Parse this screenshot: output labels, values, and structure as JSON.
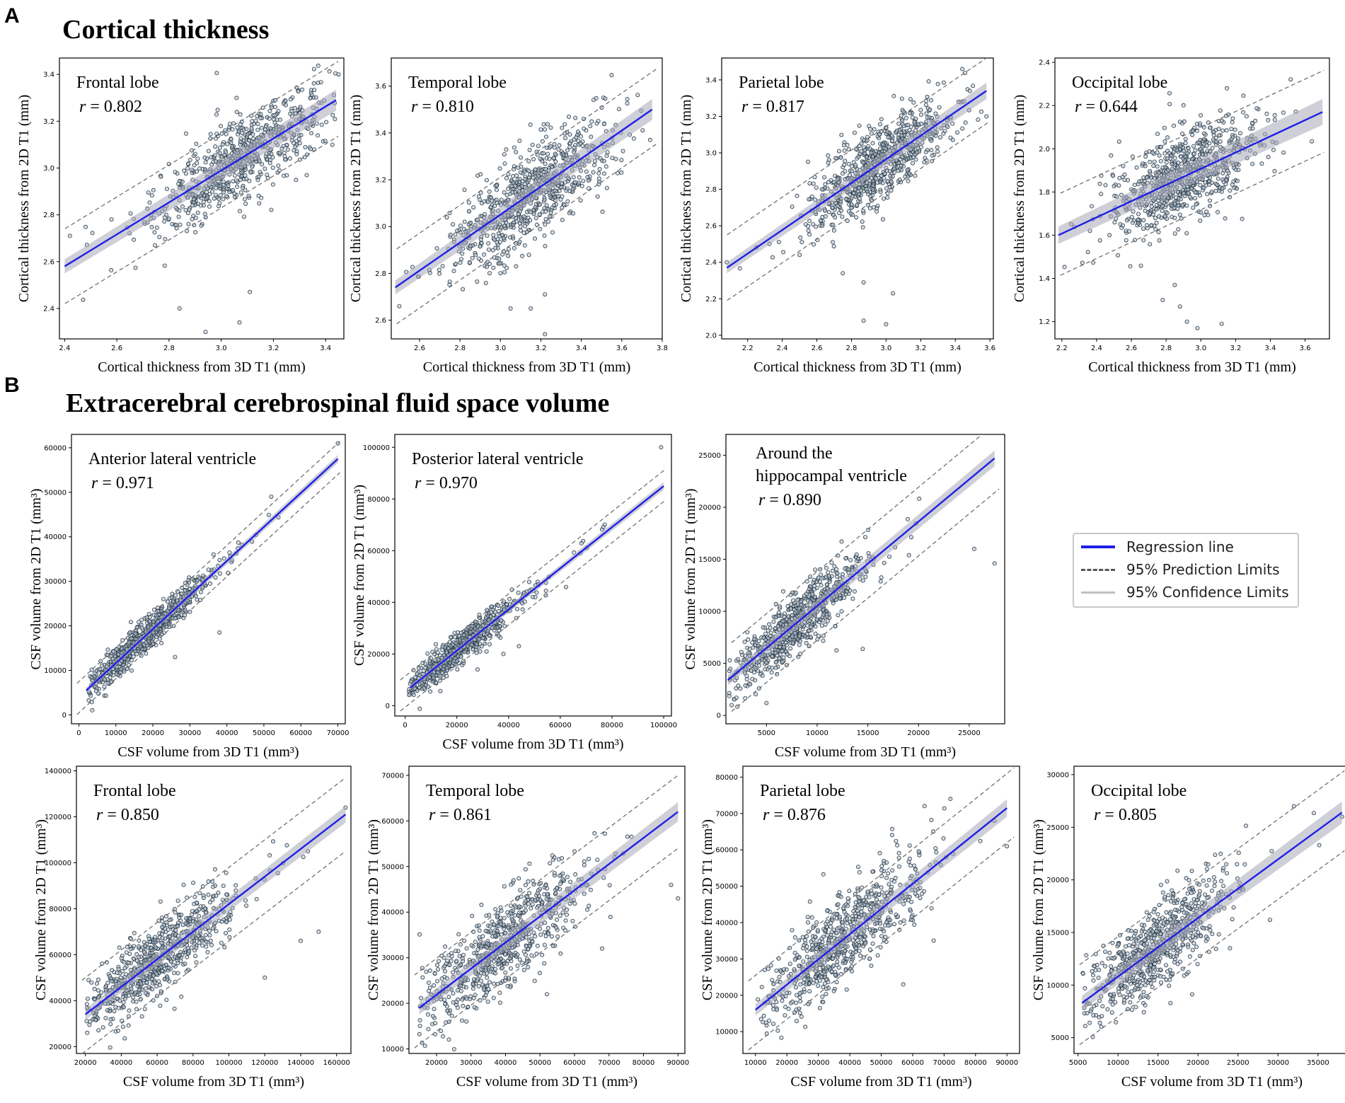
{
  "panels": {
    "a": {
      "letter": "A",
      "title": "Cortical thickness"
    },
    "b": {
      "letter": "B",
      "title": "Extracerebral cerebrospinal fluid space volume"
    }
  },
  "legend": {
    "regression": "Regression line",
    "prediction": "95% Prediction Limits",
    "confidence": "95% Confidence Limits",
    "regression_color": "#1f1fe6",
    "prediction_color": "#555555",
    "confidence_color": "#c0c0c0"
  },
  "chart_data": [
    {
      "type": "scatter",
      "title": "Frontal lobe",
      "r_value": "0.802",
      "xlabel": "Cortical thickness from 3D T1 (mm)",
      "ylabel": "Cortical thickness from 2D T1 (mm)",
      "xlim": [
        2.38,
        3.47
      ],
      "ylim": [
        2.27,
        3.47
      ],
      "xticks": [
        "2.4",
        "2.6",
        "2.8",
        "3.0",
        "3.2",
        "3.4"
      ],
      "yticks": [
        "2.4",
        "2.6",
        "2.8",
        "3.0",
        "3.2",
        "3.4"
      ],
      "regression": {
        "x": [
          2.4,
          3.44
        ],
        "y": [
          2.58,
          3.29
        ]
      },
      "pred_half_width": 0.16,
      "ci_half_width": 0.015,
      "cloud": {
        "center_x": 3.08,
        "spread_x": 0.17,
        "spread_y": 0.09,
        "x_min": 2.4,
        "x_max": 3.44,
        "count": 700
      },
      "outliers": [
        [
          2.84,
          2.4
        ],
        [
          3.11,
          2.47
        ],
        [
          2.94,
          2.3
        ],
        [
          3.07,
          2.34
        ],
        [
          2.42,
          2.71
        ],
        [
          3.45,
          3.4
        ]
      ]
    },
    {
      "type": "scatter",
      "title": "Temporal lobe",
      "r_value": "0.810",
      "xlabel": "Cortical thickness from 3D T1 (mm)",
      "ylabel": "Cortical thickness from 2D T1 (mm)",
      "xlim": [
        2.46,
        3.8
      ],
      "ylim": [
        2.52,
        3.72
      ],
      "xticks": [
        "2.6",
        "2.8",
        "3.0",
        "3.2",
        "3.4",
        "3.6",
        "3.8"
      ],
      "yticks": [
        "2.6",
        "2.8",
        "3.0",
        "3.2",
        "3.4",
        "3.6"
      ],
      "regression": {
        "x": [
          2.48,
          3.75
        ],
        "y": [
          2.74,
          3.5
        ]
      },
      "pred_half_width": 0.16,
      "ci_half_width": 0.015,
      "cloud": {
        "center_x": 3.15,
        "spread_x": 0.2,
        "spread_y": 0.1,
        "x_min": 2.5,
        "x_max": 3.75,
        "count": 750
      },
      "outliers": [
        [
          3.05,
          2.65
        ],
        [
          3.15,
          2.65
        ],
        [
          3.22,
          2.71
        ],
        [
          3.22,
          2.54
        ],
        [
          2.5,
          2.66
        ],
        [
          3.74,
          3.37
        ]
      ]
    },
    {
      "type": "scatter",
      "title": "Parietal lobe",
      "r_value": "0.817",
      "xlabel": "Cortical thickness from 3D T1 (mm)",
      "ylabel": "Cortical thickness from 2D T1 (mm)",
      "xlim": [
        2.05,
        3.62
      ],
      "ylim": [
        1.98,
        3.52
      ],
      "xticks": [
        "2.2",
        "2.4",
        "2.6",
        "2.8",
        "3.0",
        "3.2",
        "3.4",
        "3.6"
      ],
      "yticks": [
        "2.0",
        "2.2",
        "2.4",
        "2.6",
        "2.8",
        "3.0",
        "3.2",
        "3.4"
      ],
      "regression": {
        "x": [
          2.08,
          3.58
        ],
        "y": [
          2.37,
          3.34
        ]
      },
      "pred_half_width": 0.18,
      "ci_half_width": 0.015,
      "cloud": {
        "center_x": 2.95,
        "spread_x": 0.2,
        "spread_y": 0.1,
        "x_min": 2.1,
        "x_max": 3.58,
        "count": 750
      },
      "outliers": [
        [
          2.75,
          2.34
        ],
        [
          2.87,
          2.29
        ],
        [
          2.87,
          2.08
        ],
        [
          3.0,
          2.06
        ],
        [
          3.04,
          2.23
        ],
        [
          2.08,
          2.4
        ],
        [
          3.58,
          3.2
        ]
      ]
    },
    {
      "type": "scatter",
      "title": "Occipital lobe",
      "r_value": "0.644",
      "xlabel": "Cortical thickness from 3D T1 (mm)",
      "ylabel": "Cortical thickness from 2D T1 (mm)",
      "xlim": [
        2.16,
        3.74
      ],
      "ylim": [
        1.12,
        2.42
      ],
      "xticks": [
        "2.2",
        "2.4",
        "2.6",
        "2.8",
        "3.0",
        "3.2",
        "3.4",
        "3.6"
      ],
      "yticks": [
        "1.2",
        "1.4",
        "1.6",
        "1.8",
        "2.0",
        "2.2",
        "2.4"
      ],
      "regression": {
        "x": [
          2.18,
          3.7
        ],
        "y": [
          1.6,
          2.17
        ]
      },
      "pred_half_width": 0.19,
      "ci_half_width": 0.02,
      "cloud": {
        "center_x": 2.9,
        "spread_x": 0.22,
        "spread_y": 0.11,
        "x_min": 2.2,
        "x_max": 3.68,
        "count": 750
      },
      "outliers": [
        [
          2.78,
          1.3
        ],
        [
          2.85,
          1.37
        ],
        [
          2.88,
          1.27
        ],
        [
          2.92,
          1.2
        ],
        [
          2.98,
          1.17
        ],
        [
          3.12,
          1.19
        ],
        [
          3.15,
          2.28
        ]
      ]
    },
    {
      "type": "scatter",
      "title": "Anterior lateral ventricle",
      "r_value": "0.971",
      "xlabel": "CSF volume from 3D T1 (mm³)",
      "ylabel": "CSF volume from 2D T1 (mm³)",
      "xlim": [
        -2000,
        72000
      ],
      "ylim": [
        -2000,
        63000
      ],
      "xticks": [
        "0",
        "10000",
        "20000",
        "30000",
        "40000",
        "50000",
        "60000",
        "70000"
      ],
      "yticks": [
        "0",
        "10000",
        "20000",
        "30000",
        "40000",
        "50000",
        "60000"
      ],
      "regression": {
        "x": [
          2000,
          70000
        ],
        "y": [
          5500,
          57500
        ]
      },
      "pred_half_width": 3500,
      "ci_half_width": 300,
      "cloud": {
        "center_x": 17000,
        "spread_x": 9000,
        "spread_y": 1800,
        "x_min": 2500,
        "x_max": 55000,
        "count": 700
      },
      "outliers": [
        [
          70000,
          61000
        ],
        [
          52000,
          49000
        ],
        [
          38000,
          18500
        ],
        [
          26000,
          13000
        ]
      ]
    },
    {
      "type": "scatter",
      "title": "Posterior lateral ventricle",
      "r_value": "0.970",
      "xlabel": "CSF volume from 3D T1 (mm³)",
      "ylabel": "CSF volume from 2D T1 (mm³)",
      "xlim": [
        -4000,
        103000
      ],
      "ylim": [
        -4000,
        105000
      ],
      "xticks": [
        "0",
        "20000",
        "40000",
        "60000",
        "80000",
        "100000"
      ],
      "yticks": [
        "0",
        "20000",
        "40000",
        "60000",
        "80000",
        "100000"
      ],
      "regression": {
        "x": [
          2000,
          100000
        ],
        "y": [
          7000,
          85000
        ]
      },
      "pred_half_width": 6000,
      "ci_half_width": 500,
      "cloud": {
        "center_x": 20000,
        "spread_x": 12000,
        "spread_y": 3000,
        "x_min": 1500,
        "x_max": 80000,
        "count": 700
      },
      "outliers": [
        [
          99000,
          100000
        ],
        [
          44000,
          23000
        ],
        [
          38000,
          20000
        ],
        [
          28000,
          14000
        ]
      ]
    },
    {
      "type": "scatter",
      "title": "Around the hippocampal ventricle",
      "r_value": "0.890",
      "xlabel": "CSF volume from 3D T1 (mm³)",
      "ylabel": "CSF volume from 2D T1 (mm³)",
      "xlim": [
        1000,
        28500
      ],
      "ylim": [
        -800,
        27000
      ],
      "xticks": [
        "5000",
        "10000",
        "15000",
        "20000",
        "25000"
      ],
      "yticks": [
        "0",
        "5000",
        "10000",
        "15000",
        "20000",
        "25000"
      ],
      "regression": {
        "x": [
          1200,
          27500
        ],
        "y": [
          3400,
          24700
        ]
      },
      "pred_half_width": 3300,
      "ci_half_width": 250,
      "cloud": {
        "center_x": 8000,
        "spread_x": 3500,
        "spread_y": 1500,
        "x_min": 1300,
        "x_max": 22000,
        "count": 700
      },
      "outliers": [
        [
          25500,
          16000
        ],
        [
          27500,
          14600
        ],
        [
          5000,
          1200
        ],
        [
          14500,
          6400
        ]
      ]
    },
    {
      "type": "scatter",
      "title": "Frontal lobe",
      "r_value": "0.850",
      "xlabel": "CSF volume from 3D T1 (mm³)",
      "ylabel": "CSF volume from 2D T1 (mm³)",
      "xlim": [
        15000,
        168000
      ],
      "ylim": [
        17000,
        142000
      ],
      "xticks": [
        "20000",
        "40000",
        "60000",
        "80000",
        "100000",
        "120000",
        "140000",
        "160000"
      ],
      "yticks": [
        "20000",
        "40000",
        "60000",
        "80000",
        "100000",
        "120000",
        "140000"
      ],
      "regression": {
        "x": [
          20000,
          165000
        ],
        "y": [
          34000,
          121000
        ]
      },
      "pred_half_width": 16000,
      "ci_half_width": 1200,
      "cloud": {
        "center_x": 60000,
        "spread_x": 22000,
        "spread_y": 8000,
        "x_min": 20000,
        "x_max": 160000,
        "count": 700
      },
      "outliers": [
        [
          165000,
          124000
        ],
        [
          150000,
          70000
        ],
        [
          140000,
          66000
        ],
        [
          120000,
          50000
        ]
      ]
    },
    {
      "type": "scatter",
      "title": "Temporal lobe",
      "r_value": "0.861",
      "xlabel": "CSF volume from 3D T1 (mm³)",
      "ylabel": "CSF volume from 2D T1 (mm³)",
      "xlim": [
        12000,
        92000
      ],
      "ylim": [
        9000,
        72000
      ],
      "xticks": [
        "20000",
        "30000",
        "40000",
        "50000",
        "60000",
        "70000",
        "80000",
        "90000"
      ],
      "yticks": [
        "10000",
        "20000",
        "30000",
        "40000",
        "50000",
        "60000",
        "70000"
      ],
      "regression": {
        "x": [
          15000,
          90000
        ],
        "y": [
          19000,
          62000
        ]
      },
      "pred_half_width": 8000,
      "ci_half_width": 700,
      "cloud": {
        "center_x": 38000,
        "spread_x": 12000,
        "spread_y": 5000,
        "x_min": 15000,
        "x_max": 80000,
        "count": 700
      },
      "outliers": [
        [
          90000,
          43000
        ],
        [
          88000,
          46000
        ],
        [
          68000,
          32000
        ],
        [
          52000,
          22000
        ]
      ]
    },
    {
      "type": "scatter",
      "title": "Parietal lobe",
      "r_value": "0.876",
      "xlabel": "CSF volume from 3D T1 (mm³)",
      "ylabel": "CSF volume from 2D T1 (mm³)",
      "xlim": [
        6000,
        94000
      ],
      "ylim": [
        4000,
        83000
      ],
      "xticks": [
        "10000",
        "20000",
        "30000",
        "40000",
        "50000",
        "60000",
        "70000",
        "80000",
        "90000"
      ],
      "yticks": [
        "10000",
        "20000",
        "30000",
        "40000",
        "50000",
        "60000",
        "70000",
        "80000"
      ],
      "regression": {
        "x": [
          10000,
          90000
        ],
        "y": [
          16000,
          71500
        ]
      },
      "pred_half_width": 9500,
      "ci_half_width": 800,
      "cloud": {
        "center_x": 38000,
        "spread_x": 13000,
        "spread_y": 6000,
        "x_min": 10000,
        "x_max": 88000,
        "count": 700
      },
      "outliers": [
        [
          90000,
          61000
        ],
        [
          86000,
          68000
        ],
        [
          57000,
          23000
        ],
        [
          72000,
          74000
        ]
      ]
    },
    {
      "type": "scatter",
      "title": "Occipital lobe",
      "r_value": "0.805",
      "xlabel": "CSF volume from 3D T1 (mm³)",
      "ylabel": "CSF volume from 2D T1 (mm³)",
      "xlim": [
        4500,
        39000
      ],
      "ylim": [
        3500,
        30800
      ],
      "xticks": [
        "5000",
        "10000",
        "15000",
        "20000",
        "25000",
        "30000",
        "35000"
      ],
      "yticks": [
        "5000",
        "10000",
        "15000",
        "20000",
        "25000",
        "30000"
      ],
      "regression": {
        "x": [
          5500,
          38000
        ],
        "y": [
          8300,
          26400
        ]
      },
      "pred_half_width": 3800,
      "ci_half_width": 350,
      "cloud": {
        "center_x": 14500,
        "spread_x": 4500,
        "spread_y": 2000,
        "x_min": 5500,
        "x_max": 36000,
        "count": 700
      },
      "outliers": [
        [
          38000,
          26000
        ],
        [
          32000,
          27000
        ],
        [
          29000,
          16200
        ],
        [
          24000,
          13500
        ]
      ]
    }
  ]
}
